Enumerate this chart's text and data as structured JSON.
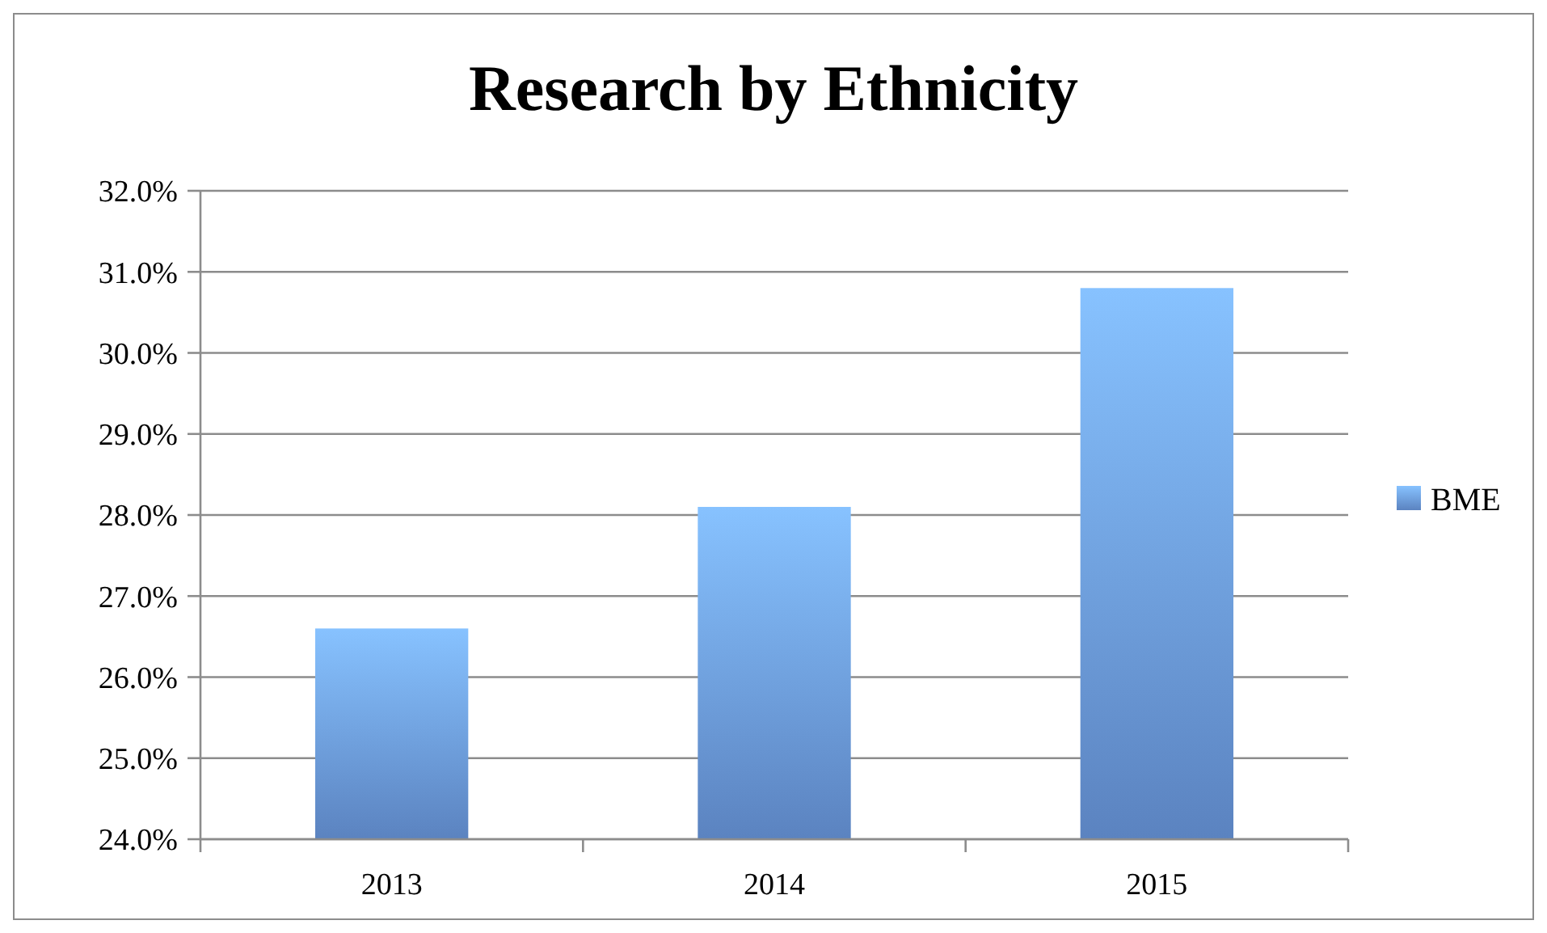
{
  "chart_data": {
    "type": "bar",
    "title": "Research by Ethnicity",
    "categories": [
      "2013",
      "2014",
      "2015"
    ],
    "series": [
      {
        "name": "BME",
        "color": "#6d9de6",
        "values": [
          26.6,
          28.1,
          30.8
        ]
      }
    ],
    "ylim": [
      24,
      32
    ],
    "yticks": [
      {
        "value": 24,
        "label": "24.0%"
      },
      {
        "value": 25,
        "label": "25.0%"
      },
      {
        "value": 26,
        "label": "26.0%"
      },
      {
        "value": 27,
        "label": "27.0%"
      },
      {
        "value": 28,
        "label": "28.0%"
      },
      {
        "value": 29,
        "label": "29.0%"
      },
      {
        "value": 30,
        "label": "30.0%"
      },
      {
        "value": 31,
        "label": "31.0%"
      },
      {
        "value": 32,
        "label": "32.0%"
      }
    ],
    "grid": "y",
    "legend": "right"
  }
}
